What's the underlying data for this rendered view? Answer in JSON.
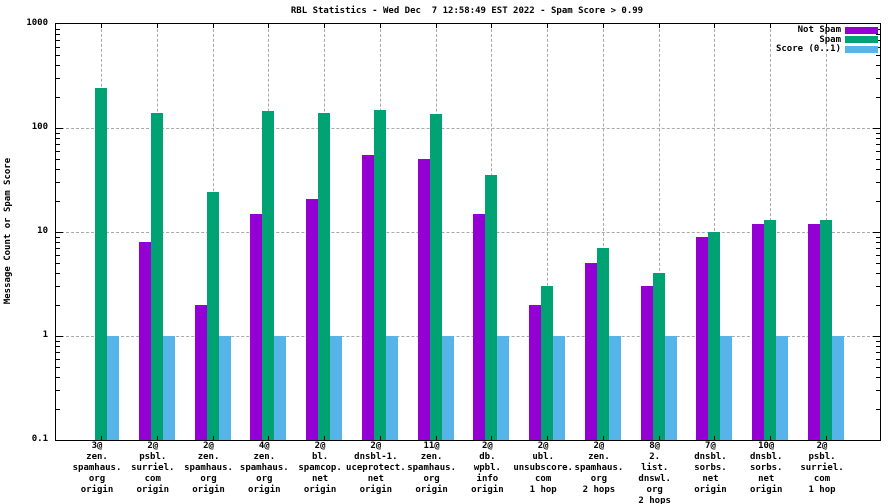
{
  "title": "RBL Statistics - Wed Dec  7 12:58:49 EST 2022 - Spam Score > 0.99",
  "ylabel": "Message Count or Spam Score",
  "legend": {
    "position": "top-right",
    "items": [
      {
        "label": "Not Spam",
        "color": "#9400d3"
      },
      {
        "label": "Spam",
        "color": "#00a273"
      },
      {
        "label": "Score (0..1)",
        "color": "#56b4e9"
      }
    ]
  },
  "chart_data": {
    "type": "bar",
    "title": "RBL Statistics - Wed Dec  7 12:58:49 EST 2022 - Spam Score > 0.99",
    "xlabel": "",
    "ylabel": "Message Count or Spam Score",
    "yscale": "log",
    "ylim": [
      0.1,
      1000
    ],
    "ytick_labels": [
      "0.1",
      "1",
      "10",
      "100",
      "1000"
    ],
    "grid": true,
    "legend_position": "top-right",
    "categories": [
      [
        "3@",
        "zen.",
        "spamhaus.",
        "org",
        "origin"
      ],
      [
        "2@",
        "psbl.",
        "surriel.",
        "com",
        "origin"
      ],
      [
        "2@",
        "zen.",
        "spamhaus.",
        "org",
        "origin"
      ],
      [
        "4@",
        "zen.",
        "spamhaus.",
        "org",
        "origin"
      ],
      [
        "2@",
        "bl.",
        "spamcop.",
        "net",
        "origin"
      ],
      [
        "2@",
        "dnsbl-1.",
        "uceprotect.",
        "net",
        "origin"
      ],
      [
        "11@",
        "zen.",
        "spamhaus.",
        "org",
        "origin"
      ],
      [
        "2@",
        "db.",
        "wpbl.",
        "info",
        "origin"
      ],
      [
        "2@",
        "ubl.",
        "unsubscore.",
        "com",
        "1 hop"
      ],
      [
        "2@",
        "zen.",
        "spamhaus.",
        "org",
        "2 hops"
      ],
      [
        "8@",
        "2.",
        "list.",
        "dnswl.",
        "org",
        "2 hops"
      ],
      [
        "7@",
        "dnsbl.",
        "sorbs.",
        "net",
        "origin"
      ],
      [
        "10@",
        "dnsbl.",
        "sorbs.",
        "net",
        "origin"
      ],
      [
        "2@",
        "psbl.",
        "surriel.",
        "com",
        "1 hop"
      ]
    ],
    "series": [
      {
        "name": "Not Spam",
        "color": "#9400d3",
        "values": [
          null,
          8,
          2,
          15,
          21,
          55,
          50,
          15,
          2,
          5,
          3,
          9,
          12,
          12
        ]
      },
      {
        "name": "Spam",
        "color": "#00a273",
        "values": [
          240,
          140,
          24,
          145,
          138,
          150,
          135,
          35,
          3,
          7,
          4,
          10,
          13,
          13
        ]
      },
      {
        "name": "Score (0..1)",
        "color": "#56b4e9",
        "values": [
          1,
          1,
          1,
          1,
          1,
          1,
          1,
          1,
          1,
          1,
          1,
          1,
          1,
          1
        ]
      }
    ]
  }
}
